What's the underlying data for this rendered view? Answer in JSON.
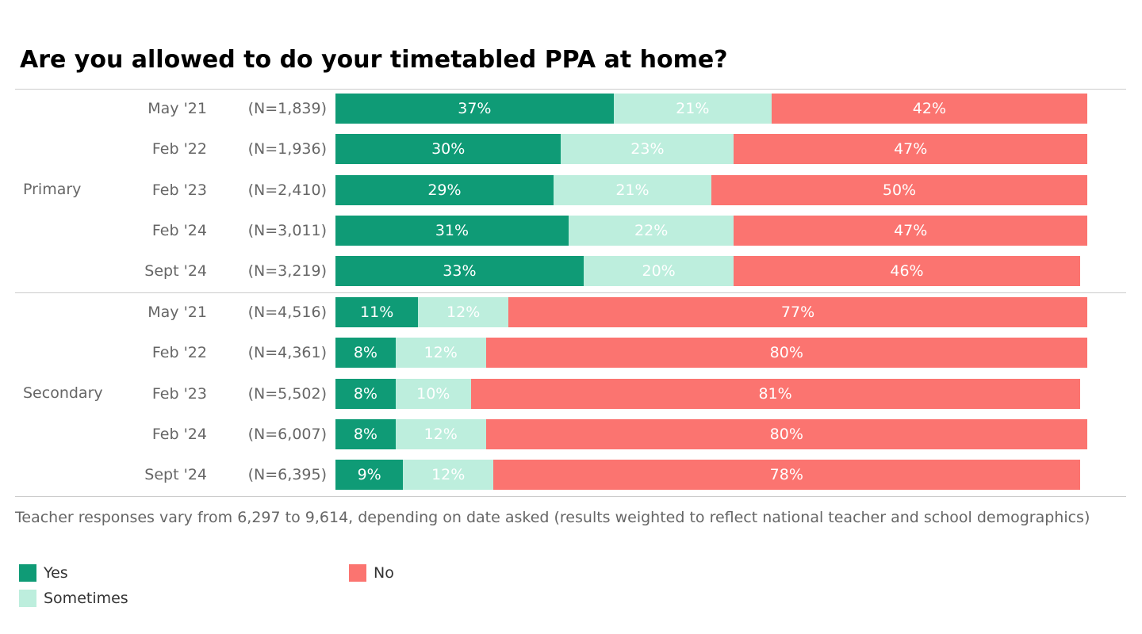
{
  "chart_data": {
    "type": "bar",
    "orientation": "horizontal-stacked-100",
    "title": "Are you allowed to do your timetabled PPA at home?",
    "note": "Teacher responses vary from 6,297 to 9,614, depending on date asked (results weighted to reflect national teacher and school demographics)",
    "legend": [
      {
        "name": "Yes",
        "color": "#0f9b76"
      },
      {
        "name": "Sometimes",
        "color": "#bdeedd"
      },
      {
        "name": "No",
        "color": "#fb7470"
      }
    ],
    "legend_placement": "bottom-left",
    "groups": [
      {
        "name": "Primary",
        "rows": [
          {
            "date": "May '21",
            "n": "(N=1,839)",
            "values": [
              37,
              21,
              42
            ]
          },
          {
            "date": "Feb '22",
            "n": "(N=1,936)",
            "values": [
              30,
              23,
              47
            ]
          },
          {
            "date": "Feb '23",
            "n": "(N=2,410)",
            "values": [
              29,
              21,
              50
            ]
          },
          {
            "date": "Feb '24",
            "n": "(N=3,011)",
            "values": [
              31,
              22,
              47
            ]
          },
          {
            "date": "Sept '24",
            "n": "(N=3,219)",
            "values": [
              33,
              20,
              46
            ]
          }
        ]
      },
      {
        "name": "Secondary",
        "rows": [
          {
            "date": "May '21",
            "n": "(N=4,516)",
            "values": [
              11,
              12,
              77
            ]
          },
          {
            "date": "Feb '22",
            "n": "(N=4,361)",
            "values": [
              8,
              12,
              80
            ]
          },
          {
            "date": "Feb '23",
            "n": "(N=5,502)",
            "values": [
              8,
              10,
              81
            ]
          },
          {
            "date": "Feb '24",
            "n": "(N=6,007)",
            "values": [
              8,
              12,
              80
            ]
          },
          {
            "date": "Sept '24",
            "n": "(N=6,395)",
            "values": [
              9,
              12,
              78
            ]
          }
        ]
      }
    ]
  }
}
